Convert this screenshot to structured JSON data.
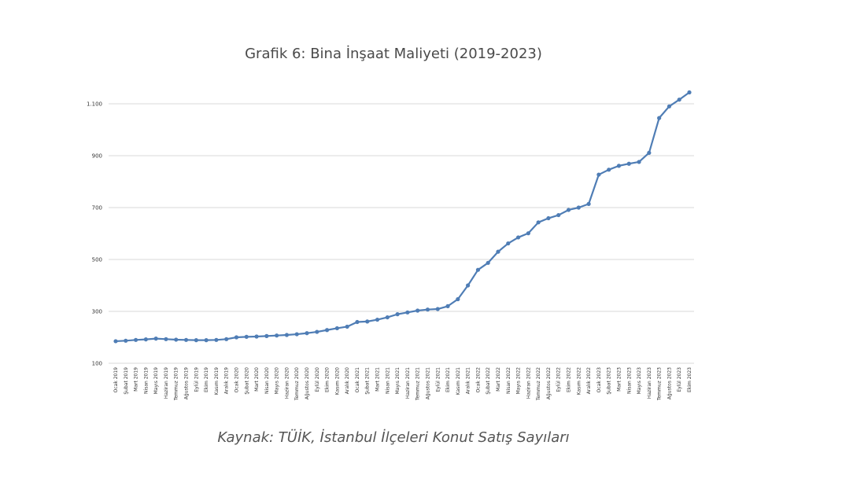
{
  "chart_data": {
    "type": "line",
    "title": "Grafik 6: Bina İnşaat Maliyeti (2019-2023)",
    "source": "Kaynak: TÜİK, İstanbul İlçeleri Konut Satış Sayıları",
    "xlabel": "",
    "ylabel": "",
    "ylim": [
      100,
      1100
    ],
    "yticks": [
      100,
      300,
      500,
      700,
      900,
      1100
    ],
    "ytick_labels": [
      "100",
      "300",
      "500",
      "700",
      "900",
      "1.100"
    ],
    "grid": true,
    "legend": "none",
    "line_color": "#4f7db5",
    "categories": [
      "Ocak 2019",
      "Şubat 2019",
      "Mart 2019",
      "Nisan 2019",
      "Mayıs 2019",
      "Haziran 2019",
      "Temmuz 2019",
      "Ağustos 2019",
      "Eylül 2019",
      "Ekim 2019",
      "Kasım 2019",
      "Aralık 2019",
      "Ocak 2020",
      "Şubat 2020",
      "Mart 2020",
      "Nisan 2020",
      "Mayıs 2020",
      "Haziran 2020",
      "Temmuz 2020",
      "Ağustos 2020",
      "Eylül 2020",
      "Ekim 2020",
      "Kasım 2020",
      "Aralık 2020",
      "Ocak 2021",
      "Şubat 2021",
      "Mart 2021",
      "Nisan 2021",
      "Mayıs 2021",
      "Haziran 2021",
      "Temmuz 2021",
      "Ağustos 2021",
      "Eylül 2021",
      "Ekim 2021",
      "Kasım 2021",
      "Aralık 2021",
      "Ocak 2022",
      "Şubat 2022",
      "Mart 2022",
      "Nisan 2022",
      "Mayıs 2022",
      "Haziran 2022",
      "Temmuz 2022",
      "Ağustos 2022",
      "Eylül 2022",
      "Ekim 2022",
      "Kasım 2022",
      "Aralık 2022",
      "Ocak 2023",
      "Şubat 2023",
      "Mart 2023",
      "Nisan 2023",
      "Mayıs 2023",
      "Haziran 2023",
      "Temmuz 2023",
      "Ağustos 2023",
      "Eylül 2023",
      "Ekim 2023"
    ],
    "series": [
      {
        "values": [
          185,
          187,
          190,
          192,
          195,
          193,
          191,
          190,
          189,
          189,
          190,
          193,
          200,
          202,
          203,
          205,
          207,
          209,
          212,
          216,
          221,
          228,
          235,
          241,
          259,
          261,
          268,
          277,
          289,
          296,
          303,
          307,
          309,
          320,
          347,
          400,
          460,
          487,
          530,
          562,
          585,
          601,
          643,
          659,
          671,
          691,
          700,
          714,
          827,
          846,
          861,
          869,
          876,
          911,
          1045,
          1090,
          1116,
          1144
        ]
      }
    ]
  }
}
